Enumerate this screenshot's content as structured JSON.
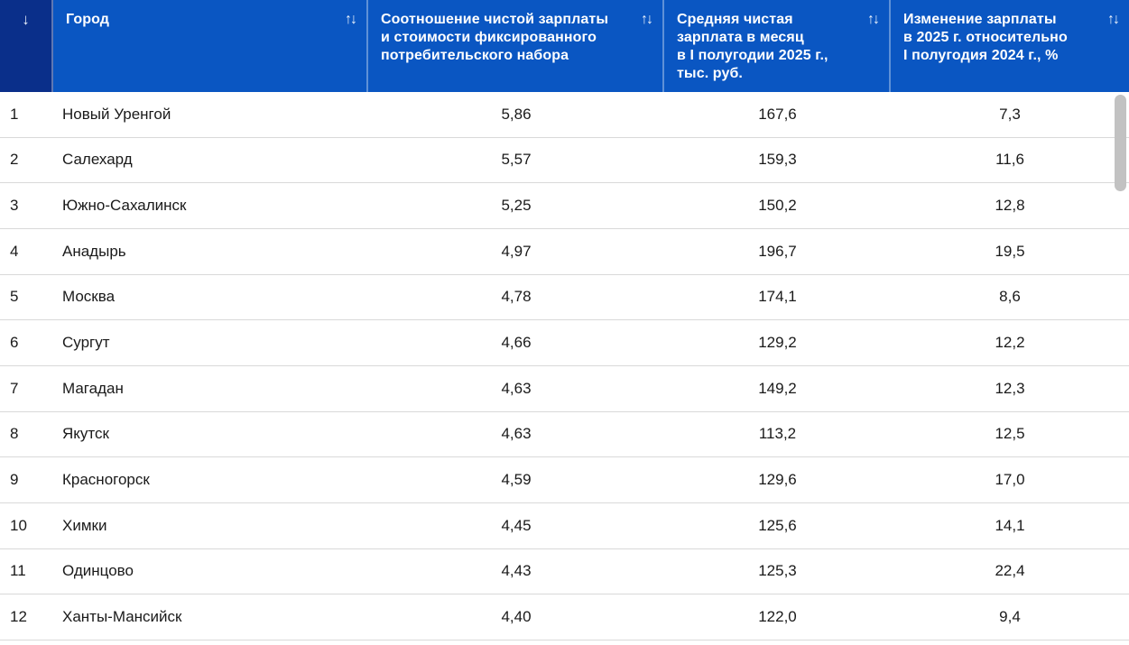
{
  "table": {
    "rank_column": {
      "sort_icon": "↓"
    },
    "columns": [
      {
        "id": "city",
        "label": "Город",
        "sort_icon": "↑↓"
      },
      {
        "id": "ratio",
        "label": "Соотношение чистой зарплаты\nи стоимости фиксированного\nпотребительского набора",
        "sort_icon": "↑↓"
      },
      {
        "id": "salary",
        "label": "Средняя чистая\nзарплата в месяц\nв I полугодии 2025 г.,\nтыс. руб.",
        "sort_icon": "↑↓"
      },
      {
        "id": "change",
        "label": "Изменение зарплаты\nв 2025 г. относительно\nI полугодия 2024 г., %",
        "sort_icon": "↑↓"
      }
    ],
    "rows": [
      {
        "rank": "1",
        "city": "Новый Уренгой",
        "ratio": "5,86",
        "salary": "167,6",
        "change": "7,3"
      },
      {
        "rank": "2",
        "city": "Салехард",
        "ratio": "5,57",
        "salary": "159,3",
        "change": "11,6"
      },
      {
        "rank": "3",
        "city": "Южно-Сахалинск",
        "ratio": "5,25",
        "salary": "150,2",
        "change": "12,8"
      },
      {
        "rank": "4",
        "city": "Анадырь",
        "ratio": "4,97",
        "salary": "196,7",
        "change": "19,5"
      },
      {
        "rank": "5",
        "city": "Москва",
        "ratio": "4,78",
        "salary": "174,1",
        "change": "8,6"
      },
      {
        "rank": "6",
        "city": "Сургут",
        "ratio": "4,66",
        "salary": "129,2",
        "change": "12,2"
      },
      {
        "rank": "7",
        "city": "Магадан",
        "ratio": "4,63",
        "salary": "149,2",
        "change": "12,3"
      },
      {
        "rank": "8",
        "city": "Якутск",
        "ratio": "4,63",
        "salary": "113,2",
        "change": "12,5"
      },
      {
        "rank": "9",
        "city": "Красногорск",
        "ratio": "4,59",
        "salary": "129,6",
        "change": "17,0"
      },
      {
        "rank": "10",
        "city": "Химки",
        "ratio": "4,45",
        "salary": "125,6",
        "change": "14,1"
      },
      {
        "rank": "11",
        "city": "Одинцово",
        "ratio": "4,43",
        "salary": "125,3",
        "change": "22,4"
      },
      {
        "rank": "12",
        "city": "Ханты-Мансийск",
        "ratio": "4,40",
        "salary": "122,0",
        "change": "9,4"
      }
    ]
  },
  "colors": {
    "header_bg": "#0a56c2",
    "rank_header_bg": "#0a2f8a",
    "header_text": "#ffffff",
    "body_text": "#1a1a1a",
    "row_divider": "#d9d9d9",
    "scrollbar_thumb": "#c2c2c2"
  }
}
